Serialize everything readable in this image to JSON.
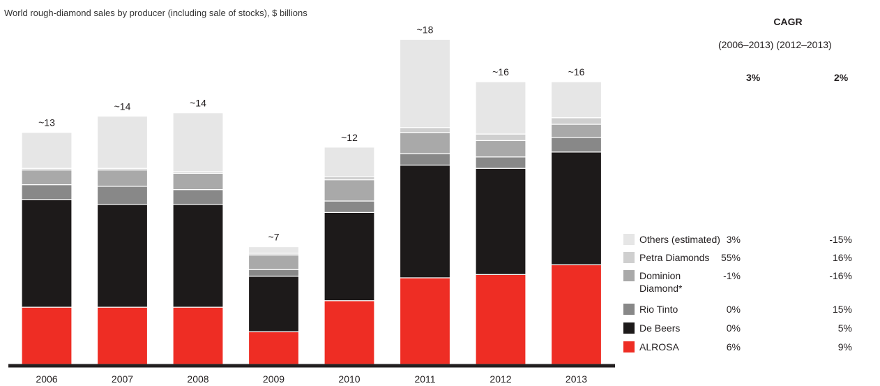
{
  "chart_data": {
    "type": "bar",
    "stacked": true,
    "title": "World rough-diamond sales by producer (including sale of stocks), $ billions",
    "categories": [
      "2006",
      "2007",
      "2008",
      "2009",
      "2010",
      "2011",
      "2012",
      "2013"
    ],
    "totals_labels": [
      "~13",
      "~14",
      "~14",
      "~7",
      "~12",
      "~18",
      "~16",
      "~16"
    ],
    "series": [
      {
        "name": "ALROSA",
        "color": "#ee2d24",
        "values": [
          3.5,
          3.5,
          3.5,
          2.0,
          3.9,
          5.3,
          5.5,
          6.1
        ]
      },
      {
        "name": "De Beers",
        "color": "#1d1a1a",
        "values": [
          6.6,
          6.3,
          6.3,
          3.4,
          5.4,
          6.9,
          6.5,
          6.9
        ]
      },
      {
        "name": "Rio Tinto",
        "color": "#888888",
        "values": [
          0.9,
          1.1,
          0.9,
          0.4,
          0.7,
          0.7,
          0.7,
          0.9
        ]
      },
      {
        "name": "Dominion Diamond*",
        "color": "#a9a9a9",
        "values": [
          0.9,
          1.0,
          1.0,
          0.9,
          1.3,
          1.3,
          1.0,
          0.8
        ]
      },
      {
        "name": "Petra Diamonds",
        "color": "#cfcfcf",
        "values": [
          0.1,
          0.1,
          0.1,
          0.1,
          0.2,
          0.3,
          0.4,
          0.4
        ]
      },
      {
        "name": "Others (estimated)",
        "color": "#e6e6e6",
        "values": [
          2.2,
          3.2,
          3.6,
          0.4,
          1.8,
          5.4,
          3.2,
          2.2
        ]
      }
    ],
    "ylim": [
      0,
      20
    ],
    "xlabel": "",
    "ylabel": ""
  },
  "cagr": {
    "heading": "CAGR",
    "period_1": "(2006–2013)",
    "period_2": "(2012–2013)",
    "total_1": "3%",
    "total_2": "2%",
    "rows": [
      {
        "label": "Others (estimated)",
        "color": "#e6e6e6",
        "v1": "3%",
        "v2": "-15%"
      },
      {
        "label": "Petra Diamonds",
        "color": "#cfcfcf",
        "v1": "55%",
        "v2": "16%"
      },
      {
        "label": "Dominion\nDiamond*",
        "color": "#a9a9a9",
        "v1": "-1%",
        "v2": "-16%"
      },
      {
        "label": "Rio Tinto",
        "color": "#888888",
        "v1": "0%",
        "v2": "15%"
      },
      {
        "label": "De Beers",
        "color": "#1d1a1a",
        "v1": "0%",
        "v2": "5%"
      },
      {
        "label": "ALROSA",
        "color": "#ee2d24",
        "v1": "6%",
        "v2": "9%"
      }
    ]
  }
}
